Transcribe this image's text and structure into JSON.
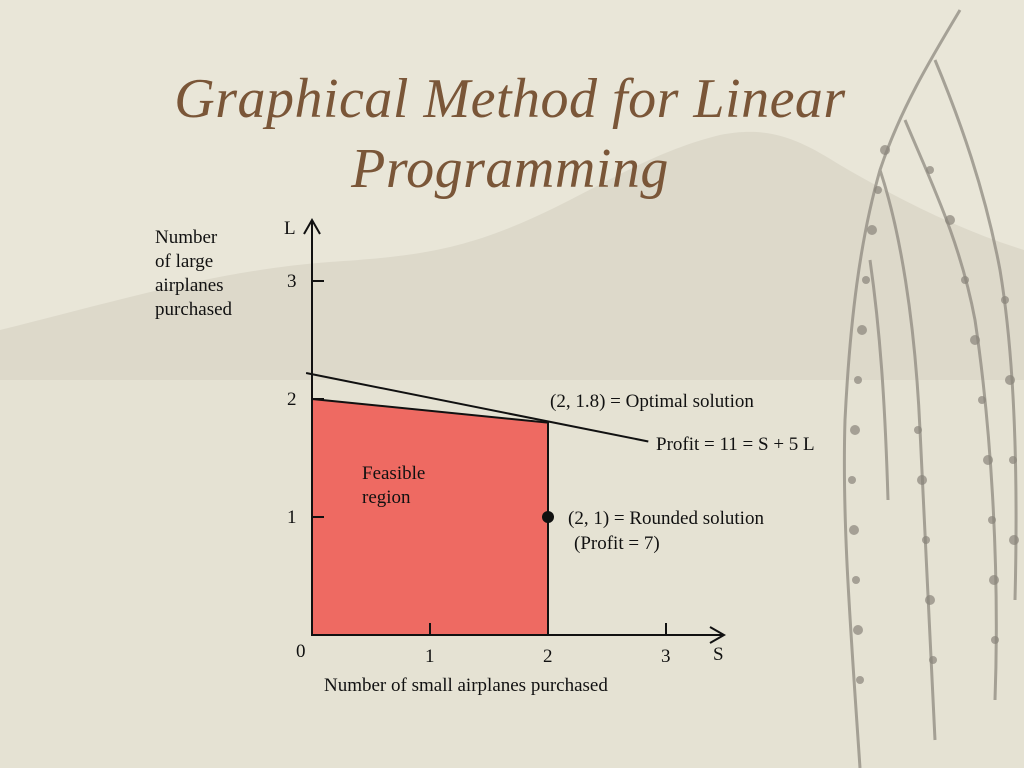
{
  "slide": {
    "title_line1": "Graphical Method for Linear",
    "title_line2": "Programming"
  },
  "chart_data": {
    "type": "area",
    "x_axis_name": "S",
    "y_axis_name": "L",
    "xlabel": "Number of small airplanes purchased",
    "ylabel_lines": [
      "Number",
      "of large",
      "airplanes",
      "purchased"
    ],
    "xlim": [
      0,
      3.5
    ],
    "ylim": [
      0,
      3.4
    ],
    "x_ticks": [
      "0",
      "1",
      "2",
      "3"
    ],
    "x_tick_values": [
      0,
      1,
      2,
      3
    ],
    "y_ticks": [
      "1",
      "2",
      "3"
    ],
    "y_tick_values": [
      1,
      2,
      3
    ],
    "feasible_region": {
      "label_lines": [
        "Feasible",
        "region"
      ],
      "vertices": [
        [
          0,
          0
        ],
        [
          0,
          2
        ],
        [
          2,
          1.8
        ],
        [
          2,
          0
        ]
      ],
      "color": "#ee6a62"
    },
    "profit_line": {
      "label": "Profit = 11 = S + 5 L",
      "points": [
        [
          -0.05,
          2.22
        ],
        [
          2.85,
          1.64
        ]
      ]
    },
    "points": [
      {
        "name": "optimal",
        "x": 2,
        "y": 1.8,
        "label": "(2, 1.8) = Optimal solution"
      },
      {
        "name": "rounded",
        "x": 2,
        "y": 1,
        "label": "(2, 1) = Rounded solution",
        "sublabel": "(Profit = 7)"
      }
    ]
  }
}
